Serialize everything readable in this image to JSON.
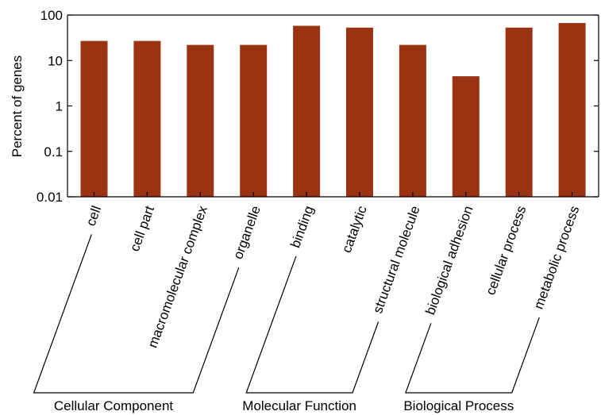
{
  "chart_data": {
    "type": "bar",
    "ylabel": "Percent of genes",
    "yscale": "log",
    "ylim": [
      0.01,
      100
    ],
    "yticks": [
      {
        "value": 0.01,
        "label": "0.01"
      },
      {
        "value": 0.1,
        "label": "0.1"
      },
      {
        "value": 1,
        "label": "1"
      },
      {
        "value": 10,
        "label": "10"
      },
      {
        "value": 100,
        "label": "100"
      }
    ],
    "bar_color": "#993311",
    "categories": [
      "cell",
      "cell part",
      "macromolecular complex",
      "organelle",
      "binding",
      "catalytic",
      "structural molecule",
      "biological adhesion",
      "cellular process",
      "metabolic process"
    ],
    "values": [
      27,
      27,
      22,
      22,
      58,
      53,
      22,
      4.5,
      53,
      67
    ],
    "groups": [
      {
        "name": "Cellular Component",
        "categories": [
          "cell",
          "cell part",
          "macromolecular complex",
          "organelle"
        ]
      },
      {
        "name": "Molecular Function",
        "categories": [
          "binding",
          "catalytic",
          "structural molecule"
        ]
      },
      {
        "name": "Biological Process",
        "categories": [
          "biological adhesion",
          "cellular process",
          "metabolic process"
        ]
      }
    ]
  }
}
